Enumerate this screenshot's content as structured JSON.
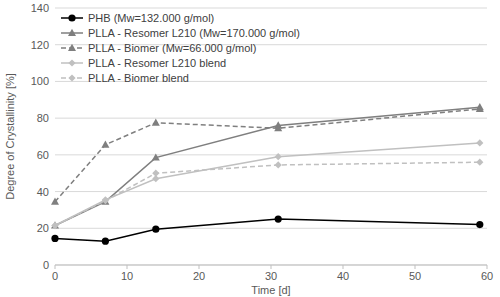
{
  "chart_data": {
    "type": "line",
    "x": [
      0,
      7,
      14,
      31,
      59
    ],
    "xlabel": "Time [d]",
    "ylabel": "Degree of Crystallinity [%]",
    "xlim": [
      0,
      60
    ],
    "xticks": [
      0,
      10,
      20,
      30,
      40,
      50,
      60
    ],
    "ylim": [
      0,
      140
    ],
    "yticks": [
      0,
      20,
      40,
      60,
      80,
      100,
      120,
      140
    ],
    "grid": true,
    "legend": "top-left",
    "series": [
      {
        "name": "PHB (Mw=132.000 g/mol)",
        "color": "#000000",
        "marker": "circle",
        "line_style": "solid",
        "values": [
          14.5,
          13,
          19.5,
          25,
          22
        ]
      },
      {
        "name": "PLLA - Resomer L210 (Mw=170.000 g/mol)",
        "color": "#7f7f7f",
        "marker": "triangle",
        "line_style": "solid",
        "values": [
          21.5,
          34.5,
          58.5,
          76,
          86
        ]
      },
      {
        "name": "PLLA - Biomer (Mw=66.000 g/mol)",
        "color": "#7f7f7f",
        "marker": "triangle",
        "line_style": "dashed",
        "values": [
          34.5,
          65.5,
          77.5,
          74.5,
          85
        ]
      },
      {
        "name": "PLLA - Resomer L210 blend",
        "color": "#c0c0c0",
        "marker": "diamond",
        "line_style": "solid",
        "values": [
          21.5,
          35.5,
          47,
          59,
          66.5
        ]
      },
      {
        "name": "PLLA - Biomer blend",
        "color": "#c0c0c0",
        "marker": "diamond",
        "line_style": "dashed",
        "values": [
          21.5,
          35,
          50,
          54.5,
          56
        ]
      }
    ]
  }
}
